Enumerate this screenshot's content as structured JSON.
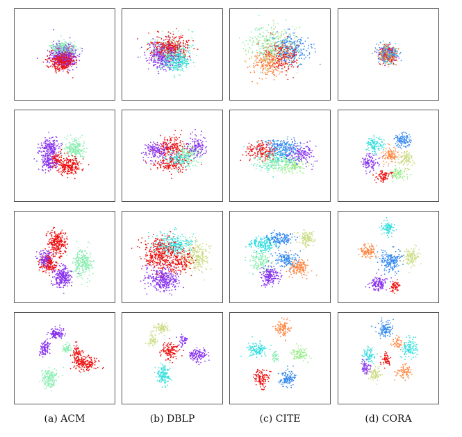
{
  "figure": {
    "captions": [
      "(a) ACM",
      "(b) DBLP",
      "(c) CITE",
      "(d) CORA"
    ],
    "columns": [
      "ACM",
      "DBLP",
      "CITE",
      "CORA"
    ],
    "rows": 4,
    "colors": {
      "red": "#ee1111",
      "purple": "#8833ee",
      "mint": "#88eeb0",
      "cyan": "#33dddd",
      "olive": "#ccdd88",
      "blue": "#3388ee",
      "orange": "#ff8844",
      "green": "#99ee88"
    }
  }
}
